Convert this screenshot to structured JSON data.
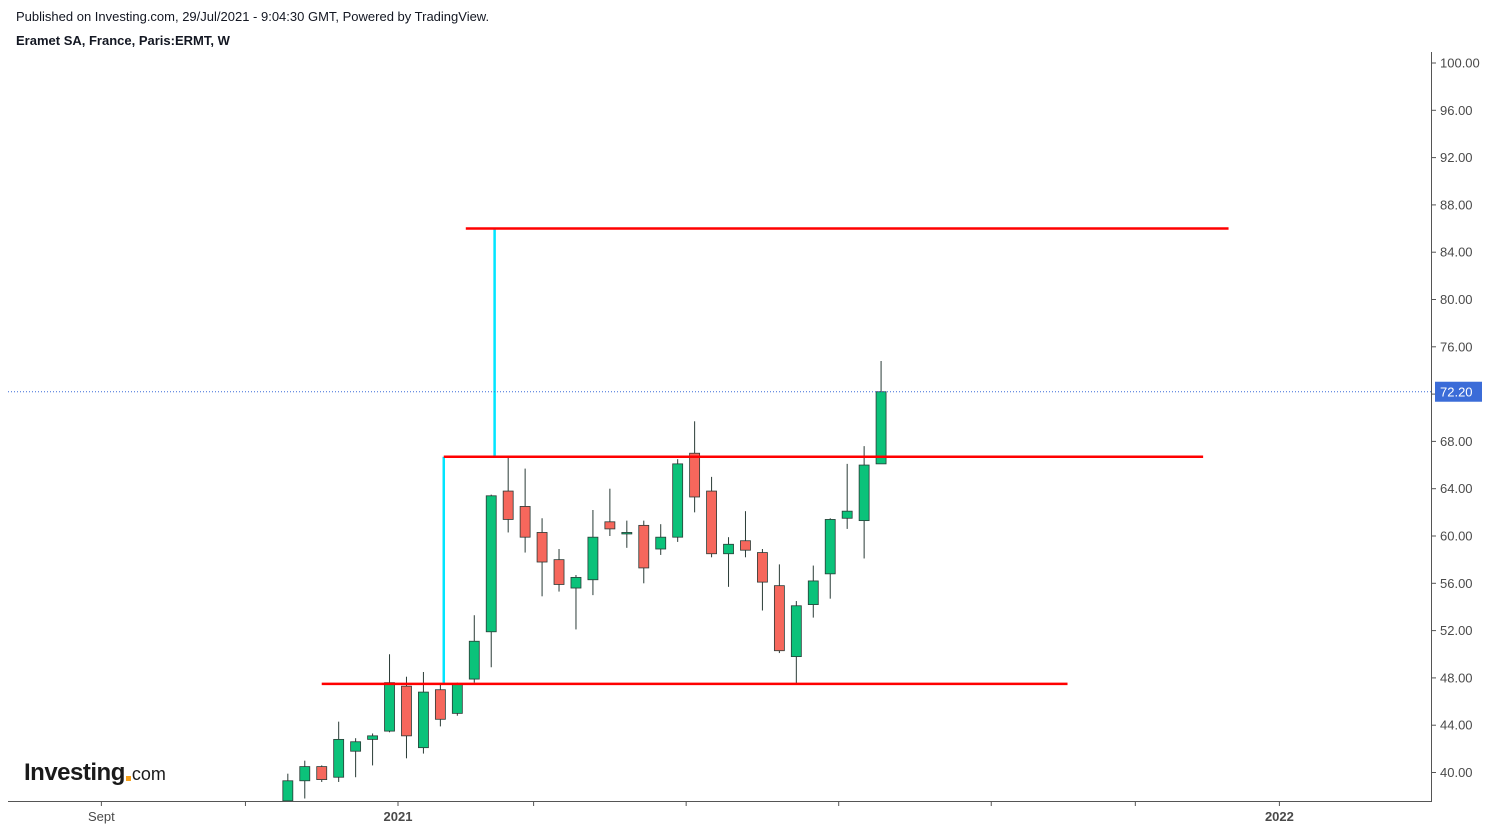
{
  "header": {
    "published": "Published on Investing.com, 29/Jul/2021 - 9:04:30 GMT, Powered by TradingView.",
    "title": "Eramet SA, France, Paris:ERMT, W"
  },
  "logo": {
    "main": "Investing",
    "suffix": "com"
  },
  "chart_data": {
    "type": "candlestick",
    "timeframe": "W",
    "ylim": [
      37.6,
      100.8
    ],
    "y_ticks": [
      "100.00",
      "96.00",
      "92.00",
      "88.00",
      "84.00",
      "80.00",
      "76.00",
      "72.00",
      "68.00",
      "64.00",
      "60.00",
      "56.00",
      "52.00",
      "48.00",
      "44.00",
      "40.00"
    ],
    "x_labels": [
      {
        "label": "Sept",
        "week": -17.5,
        "bold": false
      },
      {
        "label": "2021",
        "week": 0,
        "bold": true
      },
      {
        "label": "2022",
        "week": 52,
        "bold": true
      }
    ],
    "last_price": {
      "value": 72.2,
      "label": "72.20"
    },
    "colors": {
      "up": "#0bc27a",
      "down": "#f6675c",
      "wick": "#2a3b36",
      "level": "#ff0000",
      "measure": "#00e5ff",
      "price_line": "#3b6cd8",
      "price_tag": "#3b6cd8"
    },
    "candles": [
      {
        "w": -6.5,
        "o": 37.6,
        "h": 39.9,
        "l": 37.6,
        "c": 39.3
      },
      {
        "w": -5.5,
        "o": 39.3,
        "h": 41.0,
        "l": 37.8,
        "c": 40.5
      },
      {
        "w": -4.5,
        "o": 40.5,
        "h": 40.6,
        "l": 39.2,
        "c": 39.4
      },
      {
        "w": -3.5,
        "o": 39.6,
        "h": 44.3,
        "l": 39.2,
        "c": 42.8
      },
      {
        "w": -2.5,
        "o": 41.8,
        "h": 42.9,
        "l": 39.6,
        "c": 42.6
      },
      {
        "w": -1.5,
        "o": 42.8,
        "h": 43.3,
        "l": 40.6,
        "c": 43.1
      },
      {
        "w": -0.5,
        "o": 43.5,
        "h": 50.0,
        "l": 43.4,
        "c": 47.6
      },
      {
        "w": 0.5,
        "o": 47.3,
        "h": 48.1,
        "l": 41.2,
        "c": 43.1
      },
      {
        "w": 1.5,
        "o": 42.1,
        "h": 48.5,
        "l": 41.6,
        "c": 46.8
      },
      {
        "w": 2.5,
        "o": 47.0,
        "h": 47.5,
        "l": 43.9,
        "c": 44.5
      },
      {
        "w": 3.5,
        "o": 45.0,
        "h": 47.6,
        "l": 44.8,
        "c": 47.5
      },
      {
        "w": 4.5,
        "o": 47.9,
        "h": 53.3,
        "l": 47.6,
        "c": 51.1
      },
      {
        "w": 5.5,
        "o": 51.9,
        "h": 63.5,
        "l": 48.9,
        "c": 63.4
      },
      {
        "w": 6.5,
        "o": 63.8,
        "h": 66.7,
        "l": 60.3,
        "c": 61.4
      },
      {
        "w": 7.5,
        "o": 62.5,
        "h": 65.7,
        "l": 58.6,
        "c": 59.9
      },
      {
        "w": 8.5,
        "o": 60.3,
        "h": 61.5,
        "l": 54.9,
        "c": 57.8
      },
      {
        "w": 9.5,
        "o": 58.0,
        "h": 58.9,
        "l": 55.3,
        "c": 55.9
      },
      {
        "w": 10.5,
        "o": 55.6,
        "h": 56.7,
        "l": 52.1,
        "c": 56.5
      },
      {
        "w": 11.5,
        "o": 56.3,
        "h": 62.2,
        "l": 55.0,
        "c": 59.9
      },
      {
        "w": 12.5,
        "o": 61.2,
        "h": 64.0,
        "l": 60.0,
        "c": 60.6
      },
      {
        "w": 13.5,
        "o": 60.3,
        "h": 61.3,
        "l": 59.0,
        "c": 60.3
      },
      {
        "w": 14.5,
        "o": 60.9,
        "h": 61.3,
        "l": 56.0,
        "c": 57.3
      },
      {
        "w": 15.5,
        "o": 58.9,
        "h": 61.0,
        "l": 58.4,
        "c": 59.9
      },
      {
        "w": 16.5,
        "o": 59.9,
        "h": 66.5,
        "l": 59.5,
        "c": 66.1
      },
      {
        "w": 17.5,
        "o": 67.0,
        "h": 69.7,
        "l": 62.0,
        "c": 63.3
      },
      {
        "w": 18.5,
        "o": 63.8,
        "h": 65.0,
        "l": 58.2,
        "c": 58.5
      },
      {
        "w": 19.5,
        "o": 58.5,
        "h": 59.9,
        "l": 55.7,
        "c": 59.3
      },
      {
        "w": 20.5,
        "o": 59.6,
        "h": 62.1,
        "l": 58.2,
        "c": 58.8
      },
      {
        "w": 21.5,
        "o": 58.6,
        "h": 58.9,
        "l": 53.7,
        "c": 56.1
      },
      {
        "w": 22.5,
        "o": 55.8,
        "h": 57.6,
        "l": 50.1,
        "c": 50.3
      },
      {
        "w": 23.5,
        "o": 49.8,
        "h": 54.5,
        "l": 47.5,
        "c": 54.1
      },
      {
        "w": 24.5,
        "o": 54.2,
        "h": 57.5,
        "l": 53.1,
        "c": 56.2
      },
      {
        "w": 25.5,
        "o": 56.8,
        "h": 61.5,
        "l": 54.7,
        "c": 61.4
      },
      {
        "w": 26.5,
        "o": 61.5,
        "h": 66.1,
        "l": 60.6,
        "c": 62.1
      },
      {
        "w": 27.5,
        "o": 61.3,
        "h": 67.6,
        "l": 58.1,
        "c": 66.0
      },
      {
        "w": 28.5,
        "o": 66.1,
        "h": 74.8,
        "l": 66.1,
        "c": 72.2
      }
    ],
    "levels": [
      {
        "y": 86.0,
        "w_start": 4.0,
        "w_end": 49.0
      },
      {
        "y": 66.7,
        "w_start": 2.7,
        "w_end": 47.5
      },
      {
        "y": 47.5,
        "w_start": -4.5,
        "w_end": 39.5
      }
    ],
    "measures": [
      {
        "w": 2.7,
        "y_from": 47.5,
        "y_to": 66.7
      },
      {
        "w": 5.7,
        "y_from": 66.7,
        "y_to": 86.0
      }
    ]
  }
}
